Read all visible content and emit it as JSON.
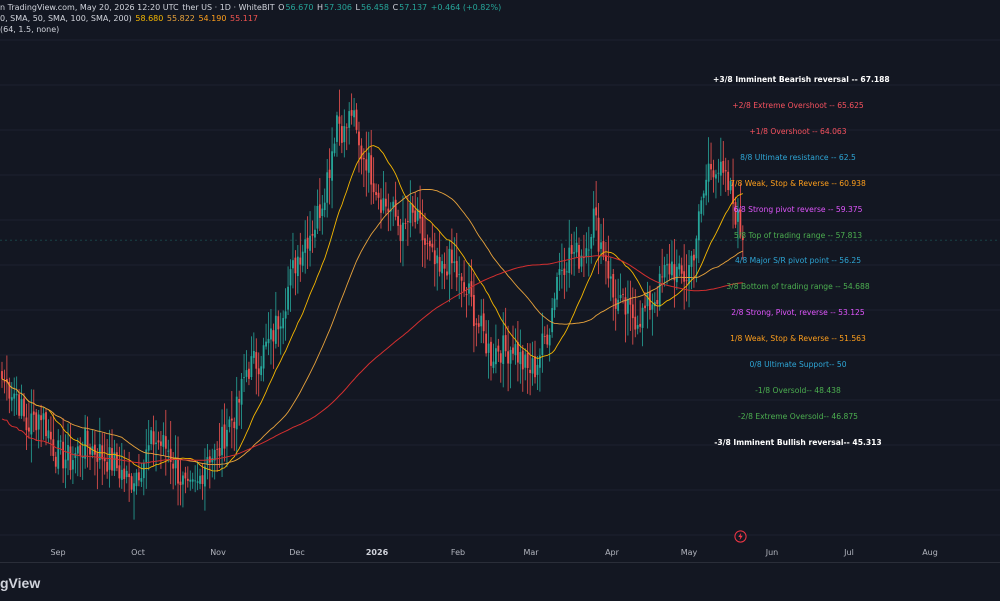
{
  "header": {
    "line1": {
      "source": "n TradingView.com, May 20, 2026 12:20 UTC",
      "symbol": "ther US · 1D · WhiteBIT",
      "open_label": "O",
      "open": "56.670",
      "high_label": "H",
      "high": "57.306",
      "low_label": "L",
      "low": "56.458",
      "close_label": "C",
      "close": "57.137",
      "change": "+0.464 (+0.82%)"
    },
    "line2": {
      "params": "0, SMA, 50, SMA, 100, SMA, 200)",
      "v1": "58.680",
      "v2": "55.822",
      "v3": "54.190",
      "v4": "55.117"
    },
    "line3": {
      "params": "(64, 1.5, none)"
    }
  },
  "murrey_levels": [
    {
      "label": "+3/8 Imminent Bearish reversal --",
      "value": "67.188",
      "color": "#ffffff",
      "bold": true
    },
    {
      "label": "+2/8 Extreme Overshoot --",
      "value": "65.625",
      "color": "#f7525f",
      "bold": false
    },
    {
      "label": "+1/8 Overshoot --",
      "value": "64.063",
      "color": "#f7525f",
      "bold": false
    },
    {
      "label": "8/8 Ultimate resistance --",
      "value": "62.5",
      "color": "#2ea6d6",
      "bold": false
    },
    {
      "label": "7/8 Weak, Stop & Reverse --",
      "value": "60.938",
      "color": "#ff9f1c",
      "bold": false
    },
    {
      "label": "6/8 Strong pivot reverse --",
      "value": "59.375",
      "color": "#e056fd",
      "bold": false
    },
    {
      "label": "5/8 Top of trading range --",
      "value": "57.813",
      "color": "#4caf50",
      "bold": false
    },
    {
      "label": "4/8 Major S/R pivot point --",
      "value": "56.25",
      "color": "#2ea6d6",
      "bold": false
    },
    {
      "label": "3/8 Bottom of trading range --",
      "value": "54.688",
      "color": "#4caf50",
      "bold": false
    },
    {
      "label": "2/8 Strong, Pivot, reverse --",
      "value": "53.125",
      "color": "#e056fd",
      "bold": false
    },
    {
      "label": "1/8 Weak, Stop & Reverse --",
      "value": "51.563",
      "color": "#ff9f1c",
      "bold": false
    },
    {
      "label": "0/8 Ultimate Support--",
      "value": "50",
      "color": "#2ea6d6",
      "bold": false
    },
    {
      "label": "-1/8 Oversold--",
      "value": "48.438",
      "color": "#4caf50",
      "bold": false
    },
    {
      "label": "-2/8 Extreme Oversold--",
      "value": "46.875",
      "color": "#4caf50",
      "bold": false
    },
    {
      "label": "-3/8 Imminent Bullish reversal--",
      "value": "45.313",
      "color": "#ffffff",
      "bold": true
    }
  ],
  "x_axis": {
    "labels": [
      {
        "text": "Sep",
        "bold": false
      },
      {
        "text": "Oct",
        "bold": false
      },
      {
        "text": "Nov",
        "bold": false
      },
      {
        "text": "Dec",
        "bold": false
      },
      {
        "text": "2026",
        "bold": true
      },
      {
        "text": "Feb",
        "bold": false
      },
      {
        "text": "Mar",
        "bold": false
      },
      {
        "text": "Apr",
        "bold": false
      },
      {
        "text": "May",
        "bold": false
      },
      {
        "text": "Jun",
        "bold": false
      },
      {
        "text": "Jul",
        "bold": false
      },
      {
        "text": "Aug",
        "bold": false
      }
    ]
  },
  "footer": {
    "brand": "gView"
  },
  "colors": {
    "up": "#26a69a",
    "down": "#ef5350",
    "background": "#131722",
    "sma_50": "#f5b700",
    "sma_100": "#e8a33c",
    "sma_200": "#d32f2f"
  },
  "chart_data": {
    "type": "candlestick",
    "price_range": [
      41.5,
      69.5
    ],
    "moving_averages": [
      "SMA 50",
      "SMA 100",
      "SMA 200"
    ],
    "keyframes_close": [
      [
        0,
        50.0
      ],
      [
        6,
        49.2
      ],
      [
        10,
        47.5
      ],
      [
        16,
        48.3
      ],
      [
        22,
        46.2
      ],
      [
        28,
        45.8
      ],
      [
        34,
        46.7
      ],
      [
        40,
        46.2
      ],
      [
        46,
        45.6
      ],
      [
        52,
        44.7
      ],
      [
        58,
        45.8
      ],
      [
        62,
        46.9
      ],
      [
        68,
        46.4
      ],
      [
        72,
        45.2
      ],
      [
        76,
        44.0
      ],
      [
        80,
        44.5
      ],
      [
        84,
        46.2
      ],
      [
        88,
        46.0
      ],
      [
        92,
        47.6
      ],
      [
        96,
        48.3
      ],
      [
        100,
        50.5
      ],
      [
        105,
        51.0
      ],
      [
        110,
        52.0
      ],
      [
        115,
        53.8
      ],
      [
        120,
        56.0
      ],
      [
        124,
        57.2
      ],
      [
        128,
        58.0
      ],
      [
        131,
        59.3
      ],
      [
        134,
        61.0
      ],
      [
        137,
        63.6
      ],
      [
        140,
        62.6
      ],
      [
        143,
        63.8
      ],
      [
        146,
        61.8
      ],
      [
        149,
        61.4
      ],
      [
        152,
        60.3
      ],
      [
        155,
        59.3
      ],
      [
        158,
        58.8
      ],
      [
        161,
        58.3
      ],
      [
        164,
        57.4
      ],
      [
        167,
        58.4
      ],
      [
        170,
        58.0
      ],
      [
        173,
        56.9
      ],
      [
        176,
        56.1
      ],
      [
        179,
        55.3
      ],
      [
        182,
        56.0
      ],
      [
        185,
        55.8
      ],
      [
        188,
        54.6
      ],
      [
        191,
        54.3
      ],
      [
        194,
        53.0
      ],
      [
        197,
        52.2
      ],
      [
        200,
        51.2
      ],
      [
        203,
        51.7
      ],
      [
        206,
        51.4
      ],
      [
        209,
        51.8
      ],
      [
        212,
        51.0
      ],
      [
        215,
        50.4
      ],
      [
        218,
        50.6
      ],
      [
        221,
        51.7
      ],
      [
        224,
        52.8
      ],
      [
        227,
        55.4
      ],
      [
        230,
        56.1
      ],
      [
        233,
        56.5
      ],
      [
        236,
        56.3
      ],
      [
        239,
        56.9
      ],
      [
        242,
        58.4
      ],
      [
        244,
        57.3
      ],
      [
        247,
        56.3
      ],
      [
        250,
        54.2
      ],
      [
        253,
        53.7
      ],
      [
        256,
        53.4
      ],
      [
        259,
        53.2
      ],
      [
        262,
        53.3
      ],
      [
        265,
        53.9
      ],
      [
        268,
        54.4
      ],
      [
        271,
        55.4
      ],
      [
        274,
        55.9
      ],
      [
        277,
        55.2
      ],
      [
        280,
        55.3
      ],
      [
        283,
        56.7
      ],
      [
        286,
        58.8
      ],
      [
        289,
        60.9
      ],
      [
        292,
        61.1
      ],
      [
        295,
        60.2
      ],
      [
        298,
        59.6
      ],
      [
        301,
        58.1
      ],
      [
        303,
        57.14
      ]
    ]
  }
}
